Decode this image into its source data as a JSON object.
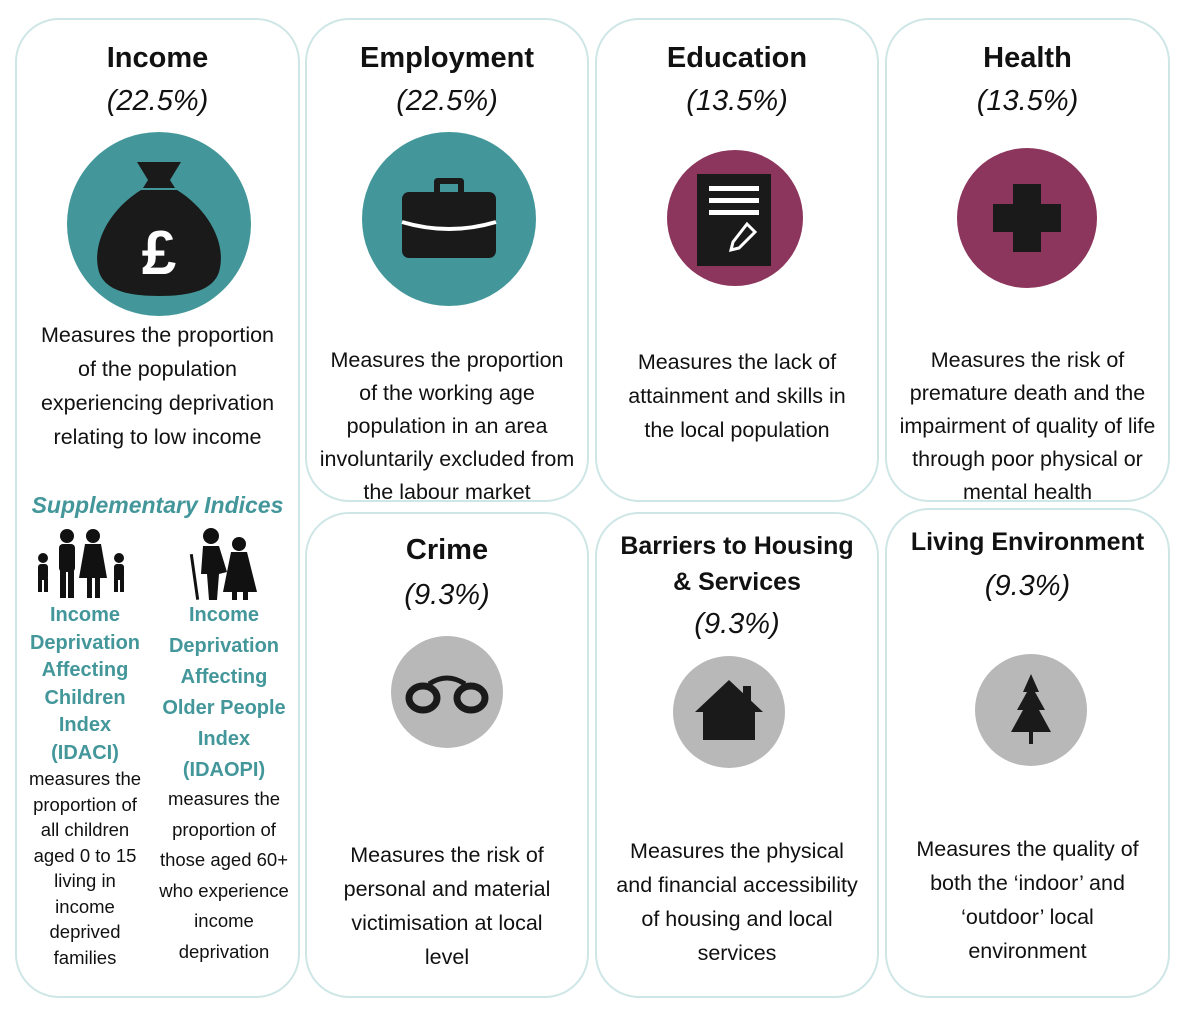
{
  "domains": {
    "income": {
      "title": "Income",
      "weight": "(22.5%)",
      "icon": "money-bag-pound-icon",
      "description": "Measures the proportion of the population experiencing deprivation relating to low income",
      "supplementary": {
        "heading": "Supplementary Indices",
        "idaci": {
          "icon": "family-icon",
          "name": "Income Deprivation Affecting Children Index (IDACI)",
          "description": "measures the proportion of all children aged 0 to 15 living in income deprived families"
        },
        "idaopi": {
          "icon": "older-people-icon",
          "name": "Income Deprivation Affecting Older People Index (IDAOPI)",
          "description": "measures the proportion of those aged 60+ who experience income deprivation"
        }
      }
    },
    "employment": {
      "title": "Employment",
      "weight": "(22.5%)",
      "icon": "briefcase-icon",
      "description": "Measures the proportion of the working age population in an area involuntarily excluded from the labour market"
    },
    "education": {
      "title": "Education",
      "weight": "(13.5%)",
      "icon": "document-pen-icon",
      "description": "Measures the lack of attainment and skills in the local population"
    },
    "health": {
      "title": "Health",
      "weight": "(13.5%)",
      "icon": "medical-cross-icon",
      "description": "Measures the risk of premature death and the impairment of quality of life through poor physical or mental health"
    },
    "crime": {
      "title": "Crime",
      "weight": "(9.3%)",
      "icon": "handcuffs-icon",
      "description": "Measures the risk of personal and material victimisation at local level"
    },
    "housing": {
      "title": "Barriers to Housing & Services",
      "weight": "(9.3%)",
      "icon": "house-icon",
      "description": "Measures the physical and financial accessibility of housing and local services"
    },
    "living": {
      "title": "Living Environment",
      "weight": "(9.3%)",
      "icon": "tree-icon",
      "description": "Measures the quality of both the ‘indoor’ and ‘outdoor’ local environment"
    }
  },
  "colors": {
    "teal": "#43979a",
    "plum": "#8d365d",
    "grey": "#b8b8b8",
    "card_border": "#cfe6e6"
  }
}
